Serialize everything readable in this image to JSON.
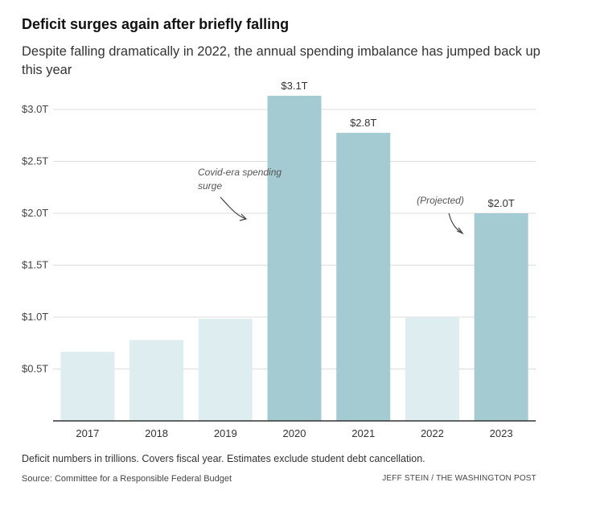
{
  "title": "Deficit surges again after briefly falling",
  "subtitle": "Despite falling dramatically in 2022, the annual spending imbalance has jumped back up this year",
  "note": "Deficit numbers in trillions. Covers fiscal year. Estimates exclude student debt cancellation.",
  "source": "Source: Committee for a Responsible Federal Budget",
  "credit": "JEFF STEIN / THE WASHINGTON POST",
  "colors": {
    "highlight": "#a4cbd1",
    "muted": "#deedef",
    "grid": "#dddddd",
    "axis": "#333333"
  },
  "chart_data": {
    "type": "bar",
    "categories": [
      "2017",
      "2018",
      "2019",
      "2020",
      "2021",
      "2022",
      "2023"
    ],
    "values": [
      0.665,
      0.779,
      0.984,
      3.132,
      2.775,
      1.0,
      2.0
    ],
    "highlighted": [
      false,
      false,
      false,
      true,
      true,
      false,
      true
    ],
    "data_labels": [
      "",
      "",
      "",
      "$3.1T",
      "$2.8T",
      "",
      "$2.0T"
    ],
    "yticks": [
      0.5,
      1.0,
      1.5,
      2.0,
      2.5,
      3.0
    ],
    "ytick_labels": [
      "$0.5T",
      "$1.0T",
      "$1.5T",
      "$2.0T",
      "$2.5T",
      "$3.0T"
    ],
    "ylim": [
      0,
      3.2
    ],
    "grid": true,
    "annotations": [
      {
        "lines": [
          "Covid-era spending",
          "surge"
        ],
        "target": "2020"
      },
      {
        "lines": [
          "(Projected)"
        ],
        "target": "2023"
      }
    ]
  }
}
